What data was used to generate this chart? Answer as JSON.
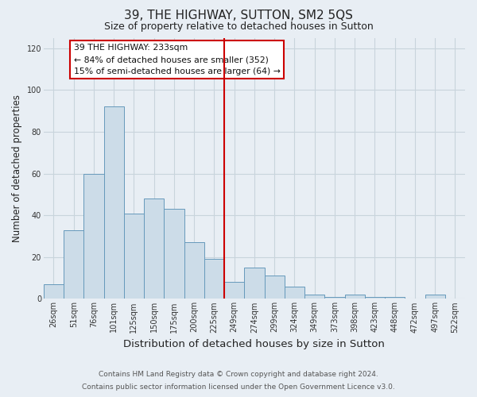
{
  "title": "39, THE HIGHWAY, SUTTON, SM2 5QS",
  "subtitle": "Size of property relative to detached houses in Sutton",
  "xlabel": "Distribution of detached houses by size in Sutton",
  "ylabel": "Number of detached properties",
  "categories": [
    "26sqm",
    "51sqm",
    "76sqm",
    "101sqm",
    "125sqm",
    "150sqm",
    "175sqm",
    "200sqm",
    "225sqm",
    "249sqm",
    "274sqm",
    "299sqm",
    "324sqm",
    "349sqm",
    "373sqm",
    "398sqm",
    "423sqm",
    "448sqm",
    "472sqm",
    "497sqm",
    "522sqm"
  ],
  "values": [
    7,
    33,
    60,
    92,
    41,
    48,
    43,
    27,
    19,
    8,
    15,
    11,
    6,
    2,
    1,
    2,
    1,
    1,
    0,
    2,
    0
  ],
  "bar_color": "#ccdce8",
  "bar_edge_color": "#6699bb",
  "vline_color": "#cc0000",
  "ylim": [
    0,
    125
  ],
  "yticks": [
    0,
    20,
    40,
    60,
    80,
    100,
    120
  ],
  "annotation_title": "39 THE HIGHWAY: 233sqm",
  "annotation_line1": "← 84% of detached houses are smaller (352)",
  "annotation_line2": "15% of semi-detached houses are larger (64) →",
  "annotation_box_color": "#ffffff",
  "annotation_box_edge": "#cc0000",
  "footer_line1": "Contains HM Land Registry data © Crown copyright and database right 2024.",
  "footer_line2": "Contains public sector information licensed under the Open Government Licence v3.0.",
  "background_color": "#e8eef4",
  "plot_background": "#e8eef4",
  "grid_color": "#c8d4dc",
  "title_fontsize": 11,
  "subtitle_fontsize": 9,
  "xlabel_fontsize": 9.5,
  "ylabel_fontsize": 8.5,
  "footer_fontsize": 6.5,
  "tick_fontsize": 7
}
